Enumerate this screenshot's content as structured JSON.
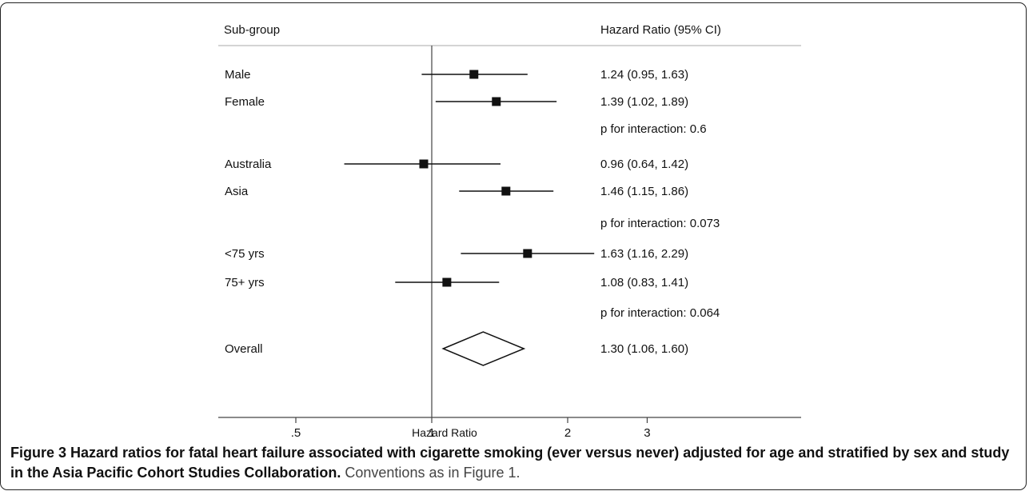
{
  "figure": {
    "caption_bold": "Figure 3 Hazard ratios for fatal heart failure associated with cigarette smoking (ever versus never) adjusted for age and stratified by sex and study in the Asia Pacific Cohort Studies Collaboration.",
    "caption_rest": " Conventions as in Figure 1."
  },
  "chart_data": {
    "type": "forest",
    "header_left": "Sub-group",
    "header_right": "Hazard Ratio (95% CI)",
    "xlabel": "Hazard Ratio",
    "x_scale": "log",
    "xlim": [
      0.4,
      5.5
    ],
    "x_ticks": [
      {
        "value": 0.5,
        "label": ".5"
      },
      {
        "value": 1,
        "label": "1"
      },
      {
        "value": 2,
        "label": "2"
      },
      {
        "value": 3,
        "label": "3"
      }
    ],
    "reference_line": 1,
    "rows": [
      {
        "kind": "estimate",
        "label": "Male",
        "hr": 1.24,
        "lo": 0.95,
        "hi": 1.63,
        "text": "1.24 (0.95, 1.63)"
      },
      {
        "kind": "estimate",
        "label": "Female",
        "hr": 1.39,
        "lo": 1.02,
        "hi": 1.89,
        "text": "1.39 (1.02, 1.89)"
      },
      {
        "kind": "note",
        "text": "p for interaction: 0.6"
      },
      {
        "kind": "estimate",
        "label": "Australia",
        "hr": 0.96,
        "lo": 0.64,
        "hi": 1.42,
        "text": "0.96 (0.64, 1.42)"
      },
      {
        "kind": "estimate",
        "label": "Asia",
        "hr": 1.46,
        "lo": 1.15,
        "hi": 1.86,
        "text": "1.46 (1.15, 1.86)"
      },
      {
        "kind": "note",
        "text": "p for interaction: 0.073"
      },
      {
        "kind": "estimate",
        "label": "<75 yrs",
        "hr": 1.63,
        "lo": 1.16,
        "hi": 2.29,
        "text": "1.63 (1.16, 2.29)"
      },
      {
        "kind": "estimate",
        "label": "75+ yrs",
        "hr": 1.08,
        "lo": 0.83,
        "hi": 1.41,
        "text": "1.08 (0.83, 1.41)"
      },
      {
        "kind": "note",
        "text": "p for interaction: 0.064"
      },
      {
        "kind": "overall",
        "label": "Overall",
        "hr": 1.3,
        "lo": 1.06,
        "hi": 1.6,
        "text": "1.30 (1.06, 1.60)"
      }
    ]
  }
}
